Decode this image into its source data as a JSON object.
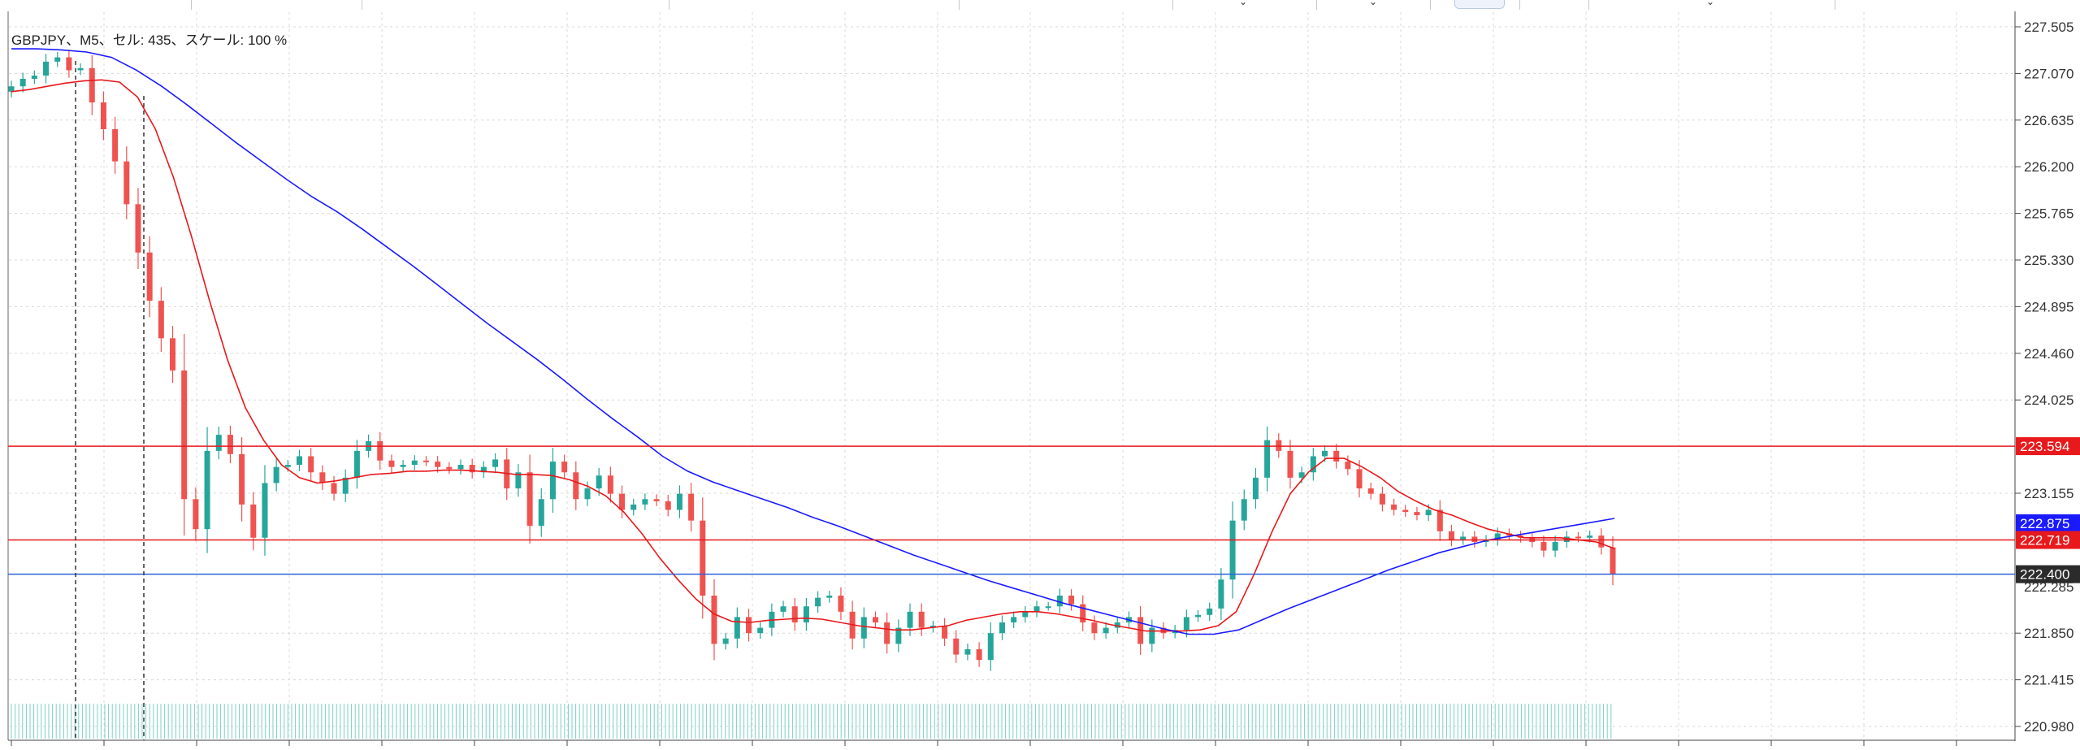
{
  "chart_header": {
    "symbol_label": "GBPJPY、M5、セル: 435、スケール: 100 %"
  },
  "price_axis": {
    "ticks": [
      "227.505",
      "227.070",
      "226.635",
      "226.200",
      "225.765",
      "225.330",
      "224.895",
      "224.460",
      "224.025",
      "223.155",
      "221.850",
      "221.415",
      "220.980"
    ]
  },
  "horizontal_lines": [
    {
      "name": "resistance-line",
      "price": 223.594,
      "label": "223.594",
      "color": "#e8191c"
    },
    {
      "name": "support-line",
      "price": 222.719,
      "label": "222.719",
      "color": "#e8191c"
    },
    {
      "name": "bid-line",
      "price": 222.4,
      "label": "222.400",
      "color": "#2b62d9"
    }
  ],
  "ma_labels": [
    {
      "name": "blue-ma-value",
      "label": "222.875",
      "color": "#1a1aff"
    }
  ],
  "partial_tick": "222.285",
  "colors": {
    "bull": "#26a69a",
    "bear": "#ef5350",
    "ma_fast": "#e8191c",
    "ma_slow": "#1a1aff",
    "grid": "#d8d8d8",
    "volume": "#7ccfc7"
  },
  "chart_data": {
    "type": "candlestick",
    "symbol": "GBPJPY",
    "timeframe": "M5",
    "ylim": [
      220.98,
      227.505
    ],
    "series": [
      {
        "name": "price-close",
        "values": [
          226.95,
          227.02,
          227.05,
          227.18,
          227.22,
          227.1,
          227.12,
          226.8,
          226.55,
          226.25,
          225.85,
          225.4,
          224.95,
          224.6,
          224.3,
          223.1,
          222.82,
          223.55,
          223.7,
          223.52,
          223.05,
          222.74,
          223.25,
          223.4,
          223.42,
          223.5,
          223.35,
          223.25,
          223.15,
          223.3,
          223.55,
          223.64,
          223.46,
          223.4,
          223.42,
          223.46,
          223.45,
          223.4,
          223.38,
          223.42,
          223.35,
          223.4,
          223.47,
          223.2,
          223.35,
          222.85,
          223.1,
          223.45,
          223.35,
          223.1,
          223.2,
          223.32,
          223.15,
          223.0,
          223.05,
          223.1,
          223.08,
          223.0,
          223.15,
          222.9,
          222.2,
          221.75,
          221.8,
          222.0,
          221.85,
          221.9,
          222.05,
          222.1,
          221.95,
          222.1,
          222.18,
          222.2,
          222.05,
          221.8,
          222.0,
          221.95,
          221.75,
          221.9,
          222.05,
          221.9,
          221.92,
          221.8,
          221.65,
          221.7,
          221.6,
          221.85,
          221.95,
          222.0,
          222.05,
          222.1,
          222.1,
          222.2,
          222.12,
          221.95,
          221.85,
          221.9,
          221.95,
          222.0,
          221.75,
          221.9,
          221.85,
          221.88,
          222.0,
          222.02,
          222.08,
          222.35,
          222.9,
          223.1,
          223.3,
          223.65,
          223.55,
          223.3,
          223.35,
          223.5,
          223.55,
          223.45,
          223.38,
          223.2,
          223.15,
          223.05,
          223.0,
          222.98,
          222.95,
          223.0,
          222.8,
          222.72,
          222.75,
          222.7,
          222.72,
          222.78,
          222.76,
          222.74,
          222.7,
          222.62,
          222.7,
          222.75,
          222.74,
          222.76,
          222.65,
          222.4
        ]
      },
      {
        "name": "ma-fast",
        "values": [
          226.9,
          226.92,
          226.95,
          226.98,
          227.0,
          227.01,
          226.99,
          226.85,
          226.55,
          226.1,
          225.55,
          224.95,
          224.4,
          223.95,
          223.65,
          223.42,
          223.3,
          223.25,
          223.27,
          223.3,
          223.33,
          223.34,
          223.36,
          223.36,
          223.37,
          223.37,
          223.36,
          223.35,
          223.33,
          223.33,
          223.32,
          223.28,
          223.22,
          223.13,
          222.98,
          222.78,
          222.55,
          222.35,
          222.17,
          222.03,
          221.96,
          221.95,
          221.97,
          221.98,
          221.99,
          221.98,
          221.95,
          221.92,
          221.9,
          221.88,
          221.88,
          221.9,
          221.92,
          221.97,
          222.0,
          222.03,
          222.05,
          222.05,
          222.03,
          222.0,
          221.97,
          221.93,
          221.9,
          221.87,
          221.87,
          221.87,
          221.88,
          221.92,
          222.05,
          222.4,
          222.8,
          223.15,
          223.35,
          223.48,
          223.48,
          223.4,
          223.3,
          223.17,
          223.08,
          223.0,
          222.95,
          222.88,
          222.82,
          222.78,
          222.74,
          222.74,
          222.74,
          222.72,
          222.7,
          222.64
        ]
      },
      {
        "name": "ma-slow",
        "values": [
          227.3,
          227.3,
          227.29,
          227.27,
          227.22,
          227.1,
          226.95,
          226.78,
          226.6,
          226.42,
          226.25,
          226.08,
          225.92,
          225.78,
          225.62,
          225.45,
          225.28,
          225.1,
          224.92,
          224.74,
          224.57,
          224.4,
          224.22,
          224.03,
          223.85,
          223.68,
          223.5,
          223.36,
          223.26,
          223.18,
          223.1,
          223.02,
          222.93,
          222.85,
          222.76,
          222.67,
          222.58,
          222.5,
          222.42,
          222.34,
          222.27,
          222.2,
          222.13,
          222.07,
          222.01,
          221.95,
          221.89,
          221.84,
          221.84,
          221.88,
          221.98,
          222.08,
          222.17,
          222.26,
          222.35,
          222.44,
          222.52,
          222.6,
          222.66,
          222.72,
          222.76,
          222.8,
          222.84,
          222.88,
          222.92
        ]
      }
    ]
  }
}
